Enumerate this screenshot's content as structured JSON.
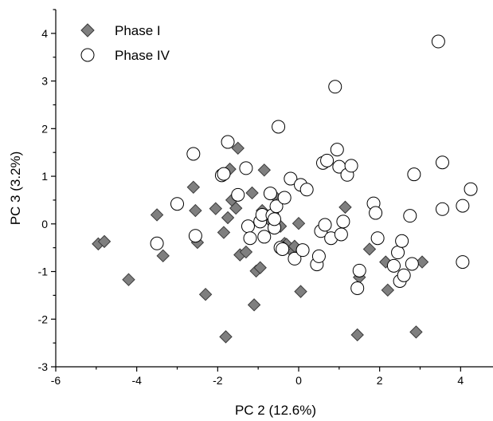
{
  "chart_data": {
    "type": "scatter",
    "xlabel": "PC 2 (12.6%)",
    "ylabel": "PC 3 (3.2%)",
    "xlim": [
      -6,
      4.8
    ],
    "ylim": [
      -3,
      4.5
    ],
    "x_ticks": [
      -6,
      -4,
      -2,
      0,
      2,
      4
    ],
    "y_ticks": [
      -3,
      -2,
      -1,
      0,
      1,
      2,
      3,
      4
    ],
    "legend_position": "top-left",
    "grid": false,
    "series": [
      {
        "name": "Phase I",
        "marker": "diamond",
        "color": "#7f7f7f",
        "x": [
          -4.95,
          -4.8,
          -4.2,
          -3.5,
          -3.35,
          -2.6,
          -2.55,
          -2.5,
          -2.3,
          -2.05,
          -1.85,
          -1.8,
          -1.75,
          -1.7,
          -1.65,
          -1.55,
          -1.5,
          -1.45,
          -1.3,
          -1.15,
          -1.1,
          -1.05,
          -0.95,
          -0.9,
          -0.85,
          -0.75,
          -0.6,
          -0.45,
          -0.35,
          -0.3,
          -0.15,
          -0.1,
          0.0,
          0.05,
          1.15,
          1.45,
          1.5,
          1.75,
          2.15,
          2.2,
          2.9,
          3.05
        ],
        "y": [
          -0.42,
          -0.37,
          -1.17,
          0.19,
          -0.67,
          0.77,
          0.28,
          -0.39,
          -1.48,
          0.32,
          -0.18,
          -2.37,
          0.13,
          1.15,
          0.5,
          0.33,
          1.59,
          -0.65,
          -0.59,
          0.65,
          -1.7,
          -0.99,
          -0.92,
          0.28,
          1.13,
          0.1,
          0.59,
          -0.05,
          -0.41,
          -0.43,
          -0.59,
          -0.47,
          0.01,
          -1.42,
          0.35,
          -2.33,
          -1.12,
          -0.53,
          -0.8,
          -1.39,
          -2.27,
          -0.8
        ]
      },
      {
        "name": "Phase IV",
        "marker": "circle",
        "color": "#ffffff",
        "x": [
          -3.5,
          -3.0,
          -2.6,
          -2.55,
          -1.9,
          -1.85,
          -1.75,
          -1.5,
          -1.3,
          -1.25,
          -1.2,
          -0.95,
          -0.9,
          -0.85,
          -0.7,
          -0.65,
          -0.6,
          -0.6,
          -0.55,
          -0.5,
          -0.45,
          -0.4,
          -0.35,
          -0.2,
          -0.1,
          0.05,
          0.1,
          0.2,
          0.45,
          0.5,
          0.55,
          0.6,
          0.65,
          0.7,
          0.8,
          0.9,
          0.95,
          1.0,
          1.05,
          1.1,
          1.2,
          1.3,
          1.45,
          1.5,
          1.85,
          1.9,
          1.95,
          2.35,
          2.45,
          2.5,
          2.55,
          2.6,
          2.75,
          2.8,
          2.85,
          3.45,
          3.55,
          3.55,
          4.05,
          4.05,
          4.25
        ],
        "y": [
          -0.41,
          0.42,
          1.47,
          -0.25,
          1.02,
          1.05,
          1.72,
          0.61,
          1.17,
          -0.05,
          -0.3,
          0.05,
          0.19,
          -0.27,
          0.64,
          0.18,
          -0.08,
          0.1,
          0.37,
          2.04,
          -0.5,
          -0.53,
          0.55,
          0.95,
          -0.73,
          0.82,
          -0.55,
          0.72,
          -0.85,
          -0.68,
          -0.15,
          1.28,
          -0.02,
          1.33,
          -0.3,
          2.88,
          1.56,
          1.2,
          -0.22,
          0.05,
          1.03,
          1.22,
          -1.35,
          -0.98,
          0.43,
          0.23,
          -0.3,
          -0.88,
          -0.6,
          -1.2,
          -0.36,
          -1.08,
          0.17,
          -0.84,
          1.04,
          3.83,
          0.31,
          1.29,
          0.38,
          -0.8,
          0.73
        ]
      }
    ]
  }
}
